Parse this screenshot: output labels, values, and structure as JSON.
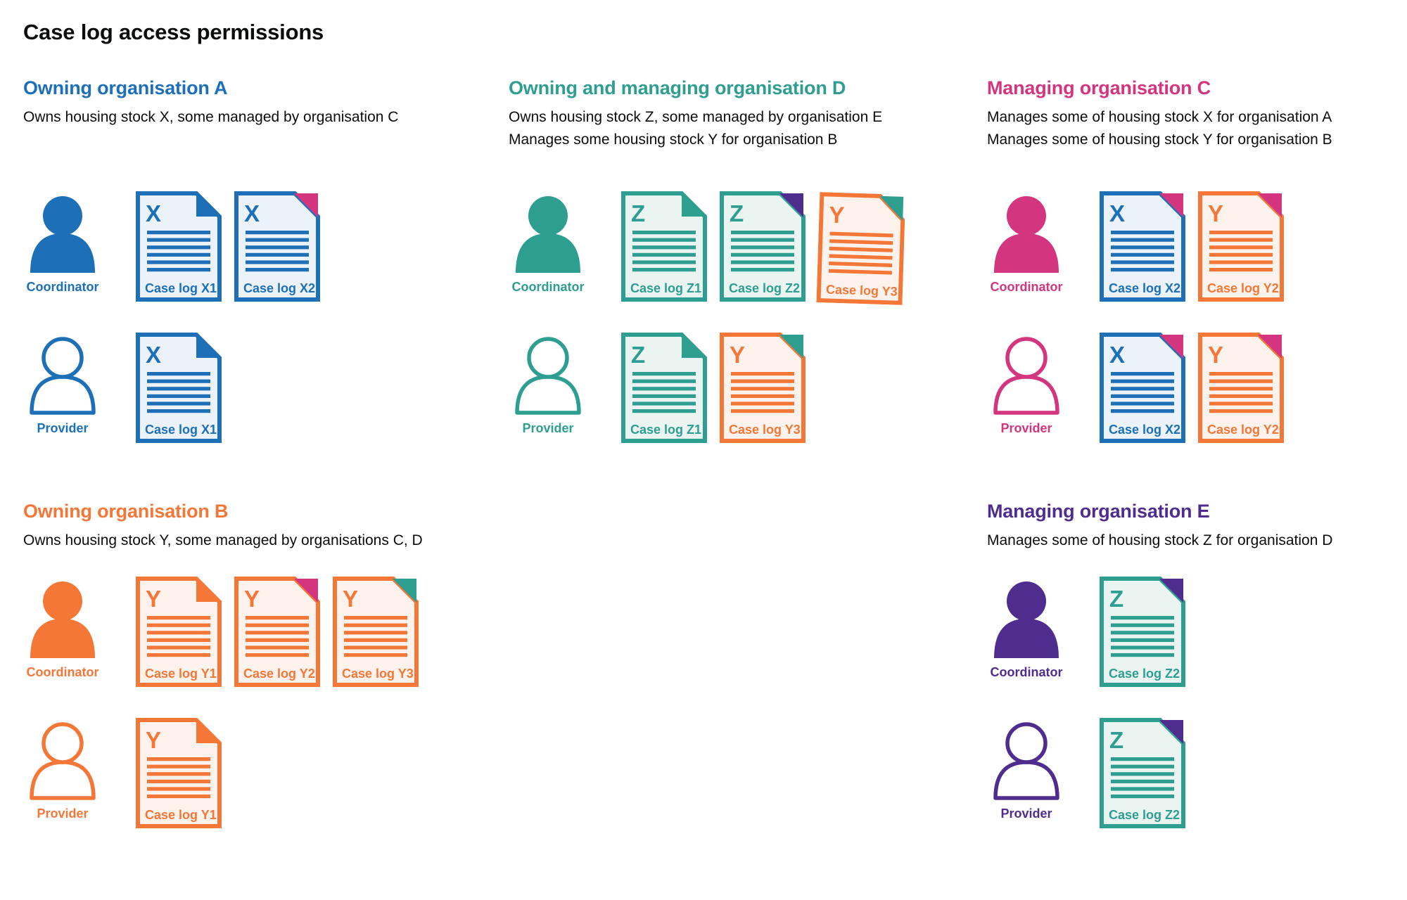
{
  "title": "Case log access permissions",
  "colors": {
    "blue": {
      "main": "#1d70b8",
      "light": "#ecf2f9"
    },
    "teal": {
      "main": "#2e9e90",
      "light": "#eaf5f2"
    },
    "pink": {
      "main": "#d4357f",
      "light": "#fbebf3"
    },
    "orange": {
      "main": "#f47738",
      "light": "#fef3ec"
    },
    "purple": {
      "main": "#4f2d8f",
      "light": "#efecf6"
    },
    "text": "#0b0c0c"
  },
  "sections": [
    {
      "id": "org-a",
      "position": "pos-a",
      "row_gap": "tall-gap",
      "heading": "Owning organisation A",
      "color": "blue",
      "description": [
        "Owns housing stock X, some managed by organisation C"
      ],
      "rows": [
        {
          "role": "Coordinator",
          "person_style": "filled",
          "docs": [
            {
              "letter": "X",
              "label": "Case log X1",
              "doc_color": "blue",
              "fold_color": "blue"
            },
            {
              "letter": "X",
              "label": "Case log X2",
              "doc_color": "blue",
              "fold_color": "pink"
            }
          ]
        },
        {
          "role": "Provider",
          "person_style": "outline",
          "docs": [
            {
              "letter": "X",
              "label": "Case log X1",
              "doc_color": "blue",
              "fold_color": "blue"
            }
          ]
        }
      ]
    },
    {
      "id": "org-d",
      "position": "pos-d",
      "row_gap": "tall-gap",
      "heading": "Owning and managing organisation D",
      "color": "teal",
      "description": [
        "Owns housing stock Z, some managed by organisation E",
        "Manages some housing stock Y for organisation B"
      ],
      "rows": [
        {
          "role": "Coordinator",
          "person_style": "filled",
          "docs": [
            {
              "letter": "Z",
              "label": "Case log Z1",
              "doc_color": "teal",
              "fold_color": "teal"
            },
            {
              "letter": "Z",
              "label": "Case log Z2",
              "doc_color": "teal",
              "fold_color": "purple"
            },
            {
              "letter": "Y",
              "label": "Case log Y3",
              "doc_color": "orange",
              "fold_color": "teal",
              "tilted": true
            }
          ]
        },
        {
          "role": "Provider",
          "person_style": "outline",
          "docs": [
            {
              "letter": "Z",
              "label": "Case log Z1",
              "doc_color": "teal",
              "fold_color": "teal"
            },
            {
              "letter": "Y",
              "label": "Case log Y3",
              "doc_color": "orange",
              "fold_color": "teal"
            }
          ]
        }
      ]
    },
    {
      "id": "org-c",
      "position": "pos-c",
      "row_gap": "tall-gap",
      "heading": "Managing organisation C",
      "color": "pink",
      "description": [
        "Manages some of housing stock X for organisation A",
        "Manages some of housing stock Y for organisation B"
      ],
      "rows": [
        {
          "role": "Coordinator",
          "person_style": "filled",
          "docs": [
            {
              "letter": "X",
              "label": "Case log X2",
              "doc_color": "blue",
              "fold_color": "pink"
            },
            {
              "letter": "Y",
              "label": "Case log Y2",
              "doc_color": "orange",
              "fold_color": "pink"
            }
          ]
        },
        {
          "role": "Provider",
          "person_style": "outline",
          "docs": [
            {
              "letter": "X",
              "label": "Case log X2",
              "doc_color": "blue",
              "fold_color": "pink"
            },
            {
              "letter": "Y",
              "label": "Case log Y2",
              "doc_color": "orange",
              "fold_color": "pink"
            }
          ]
        }
      ]
    },
    {
      "id": "org-b",
      "position": "pos-b",
      "row_gap": "short-gap",
      "heading": "Owning organisation B",
      "color": "orange",
      "description": [
        "Owns housing stock Y, some managed by organisations C, D"
      ],
      "rows": [
        {
          "role": "Coordinator",
          "person_style": "filled",
          "docs": [
            {
              "letter": "Y",
              "label": "Case log Y1",
              "doc_color": "orange",
              "fold_color": "orange"
            },
            {
              "letter": "Y",
              "label": "Case log Y2",
              "doc_color": "orange",
              "fold_color": "pink"
            },
            {
              "letter": "Y",
              "label": "Case log Y3",
              "doc_color": "orange",
              "fold_color": "teal"
            }
          ]
        },
        {
          "role": "Provider",
          "person_style": "outline",
          "docs": [
            {
              "letter": "Y",
              "label": "Case log Y1",
              "doc_color": "orange",
              "fold_color": "orange"
            }
          ]
        }
      ]
    },
    {
      "id": "org-e",
      "position": "pos-e",
      "row_gap": "short-gap",
      "heading": "Managing organisation E",
      "color": "purple",
      "description": [
        "Manages some of housing stock Z for organisation D"
      ],
      "rows": [
        {
          "role": "Coordinator",
          "person_style": "filled",
          "docs": [
            {
              "letter": "Z",
              "label": "Case log Z2",
              "doc_color": "teal",
              "fold_color": "purple"
            }
          ]
        },
        {
          "role": "Provider",
          "person_style": "outline",
          "docs": [
            {
              "letter": "Z",
              "label": "Case log Z2",
              "doc_color": "teal",
              "fold_color": "purple"
            }
          ]
        }
      ]
    }
  ]
}
